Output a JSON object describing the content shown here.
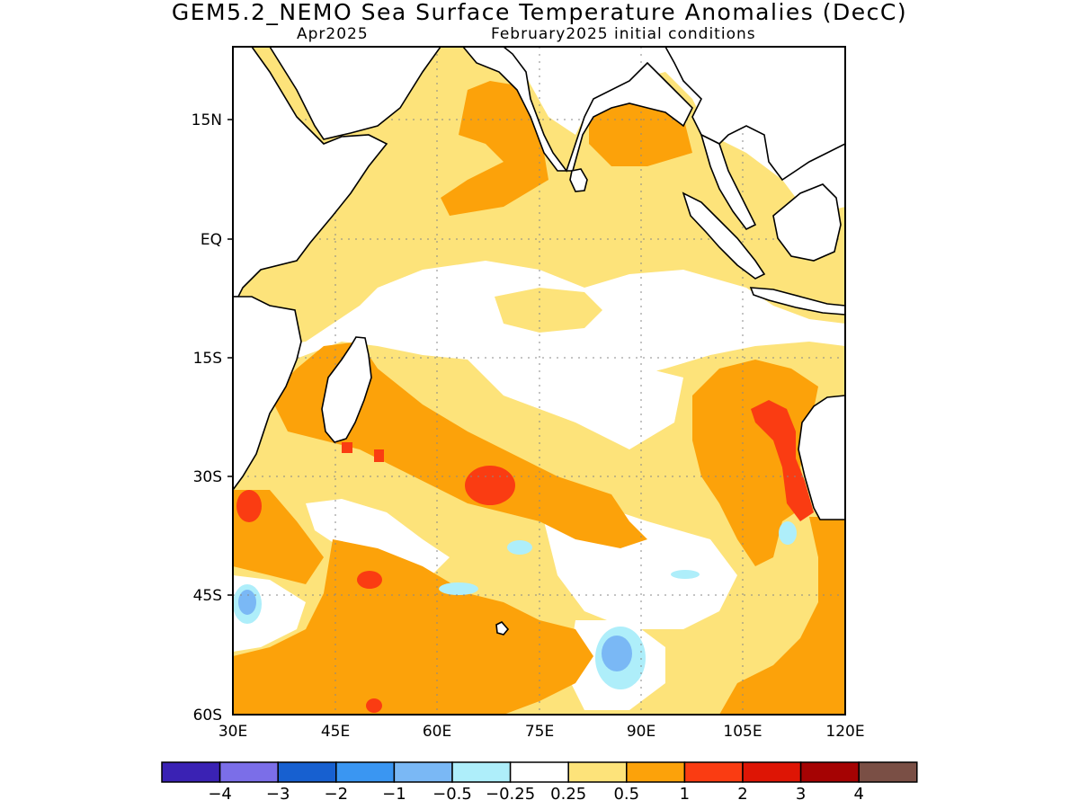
{
  "title": "GEM5.2_NEMO Sea Surface Temperature Anomalies (DecC)",
  "valid_month": "Apr2025",
  "initial_conditions": "February2025 initial conditions",
  "map": {
    "lat_ticks": [
      "15N",
      "EQ",
      "15S",
      "30S",
      "45S",
      "60S"
    ],
    "lon_ticks": [
      "30E",
      "45E",
      "60E",
      "75E",
      "90E",
      "105E",
      "120E"
    ]
  },
  "colorbar": {
    "colors": [
      "#3a22b4",
      "#7b6ee8",
      "#1760d0",
      "#3a96f2",
      "#7ab8f5",
      "#aeeefa",
      "#ffffff",
      "#fde37a",
      "#fca20a",
      "#fa3c12",
      "#de1505",
      "#a50303",
      "#7a4f45"
    ],
    "labels": [
      "−4",
      "−3",
      "−2",
      "−1",
      "−0.5",
      "−0.25",
      "0.25",
      "0.5",
      "1",
      "2",
      "3",
      "4"
    ]
  }
}
